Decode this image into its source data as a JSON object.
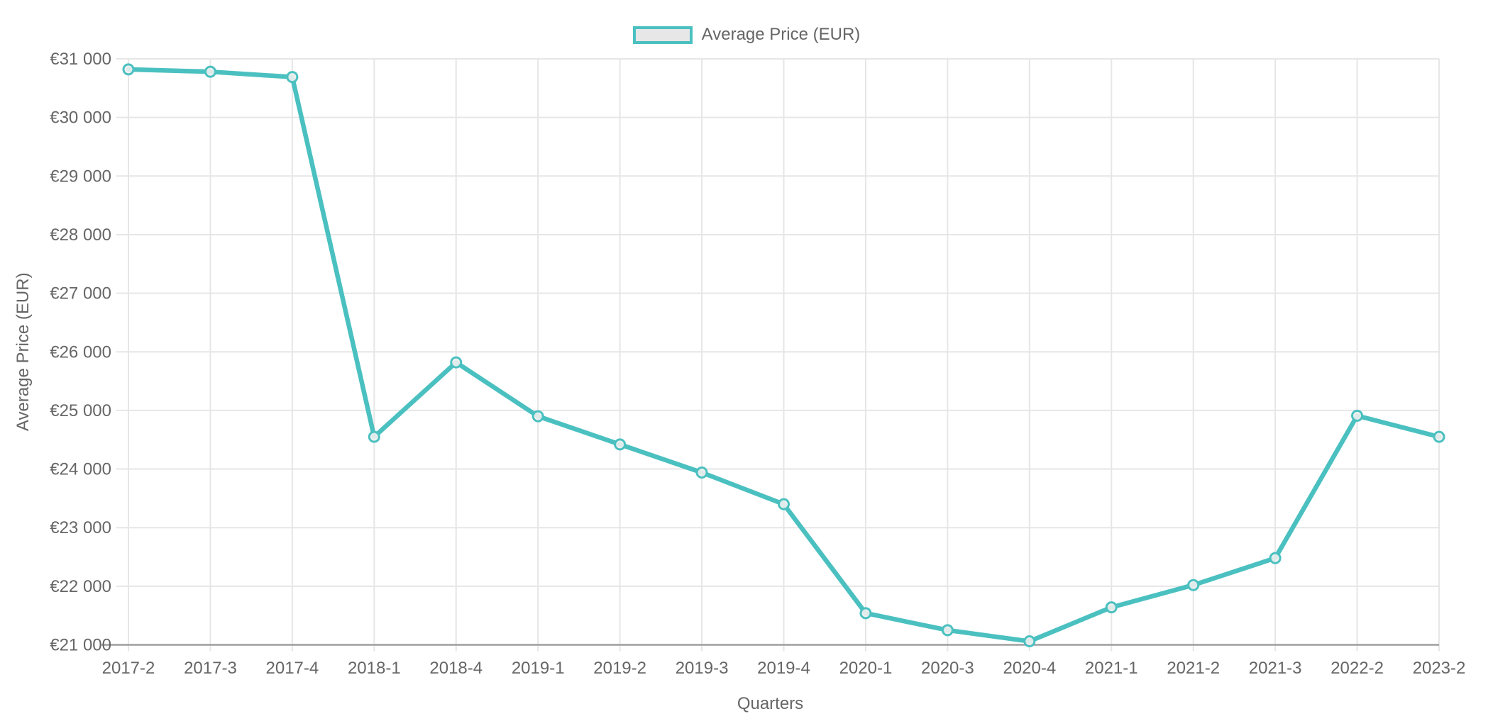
{
  "legend": {
    "label": "Average Price (EUR)"
  },
  "chart_data": {
    "type": "line",
    "title": "",
    "categories": [
      "2017-2",
      "2017-3",
      "2017-4",
      "2018-1",
      "2018-4",
      "2019-1",
      "2019-2",
      "2019-3",
      "2019-4",
      "2020-1",
      "2020-3",
      "2020-4",
      "2021-1",
      "2021-2",
      "2021-3",
      "2022-2",
      "2023-2"
    ],
    "series": [
      {
        "name": "Average Price (EUR)",
        "values": [
          30820,
          30780,
          30690,
          24550,
          25820,
          24900,
          24420,
          23940,
          23400,
          21540,
          21250,
          21060,
          21640,
          22020,
          22480,
          24910,
          24550
        ]
      }
    ],
    "xlabel": "Quarters",
    "ylabel": "Average Price (EUR)",
    "ylim": [
      21000,
      31000
    ],
    "ytick_step": 1000,
    "y_tick_labels": [
      "€31 000",
      "€30 000",
      "€29 000",
      "€28 000",
      "€27 000",
      "€26 000",
      "€25 000",
      "€24 000",
      "€23 000",
      "€22 000",
      "€21 000"
    ],
    "grid": true,
    "legend_position": "top",
    "colors": {
      "line": "#4bc0c0",
      "marker_fill": "#efefef",
      "grid": "#e6e6e6",
      "axis_border": "#9e9e9e",
      "text": "#666666",
      "legend_box_fill": "#e7e7e7"
    }
  }
}
